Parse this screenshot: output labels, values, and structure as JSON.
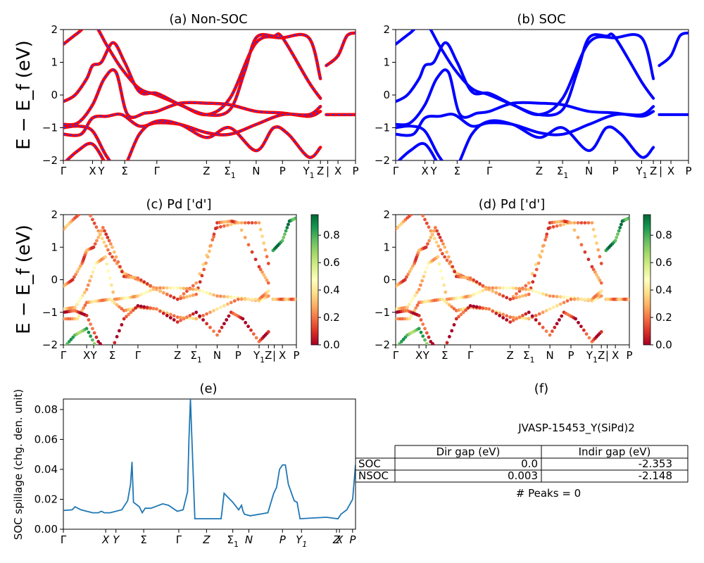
{
  "colors": {
    "nonsoc": "#ff0000",
    "nonsoc_dash": "#1f3bff",
    "soc": "#0000ff",
    "spillage": "#1f77b4"
  },
  "yaxis_label": "E − E_f (eV)",
  "chart_data": [
    {
      "id": "a",
      "type": "line",
      "title": "(a) Non-SOC",
      "ylim": [
        -2,
        2
      ],
      "yticks": [
        "2",
        "1",
        "0",
        "−1",
        "−2"
      ],
      "kticks": [
        {
          "x": 0.0,
          "label": "Γ"
        },
        {
          "x": 0.1,
          "label": "X"
        },
        {
          "x": 0.13,
          "label": "Y"
        },
        {
          "x": 0.21,
          "label": "Σ"
        },
        {
          "x": 0.32,
          "label": "Γ"
        },
        {
          "x": 0.49,
          "label": "Z"
        },
        {
          "x": 0.57,
          "label": "Σ",
          "sub": "1"
        },
        {
          "x": 0.66,
          "label": "N"
        },
        {
          "x": 0.75,
          "label": "P"
        },
        {
          "x": 0.84,
          "label": "Y",
          "sub": "1"
        },
        {
          "x": 0.88,
          "label": "Z"
        },
        {
          "x": 0.905,
          "label": "|"
        },
        {
          "x": 0.94,
          "label": "X"
        },
        {
          "x": 1.0,
          "label": "P"
        }
      ],
      "bands": [
        {
          "x": [
            0.0,
            0.05,
            0.1,
            0.15,
            0.2,
            0.26,
            0.32,
            0.4,
            0.49,
            0.57,
            0.66,
            0.75,
            0.84,
            0.88
          ],
          "y": [
            1.55,
            1.9,
            2.2,
            1.5,
            0.8,
            0.2,
            0.0,
            -0.3,
            -0.6,
            -0.1,
            1.6,
            1.75,
            1.75,
            0.5
          ]
        },
        {
          "x": [
            0.0,
            0.04,
            0.08,
            0.1,
            0.13,
            0.17,
            0.21,
            0.26,
            0.32,
            0.4,
            0.49,
            0.57,
            0.62,
            0.66,
            0.72,
            0.75,
            0.84,
            0.88
          ],
          "y": [
            -0.2,
            0.0,
            0.5,
            0.9,
            1.0,
            1.6,
            1.0,
            0.1,
            0.05,
            -0.3,
            -0.6,
            -0.45,
            0.7,
            1.75,
            1.8,
            1.75,
            0.4,
            -0.1
          ]
        },
        {
          "x": [
            0.0,
            0.05,
            0.1,
            0.14,
            0.18,
            0.22,
            0.28,
            0.32,
            0.4,
            0.49,
            0.57,
            0.66,
            0.75,
            0.84,
            0.88
          ],
          "y": [
            -0.9,
            -0.85,
            -0.3,
            0.5,
            0.7,
            -0.6,
            -0.55,
            -0.5,
            -0.25,
            -0.25,
            -0.3,
            -0.5,
            -0.55,
            -0.65,
            -0.5
          ]
        },
        {
          "x": [
            0.0,
            0.06,
            0.1,
            0.15,
            0.2,
            0.26,
            0.32,
            0.4,
            0.49,
            0.57,
            0.66,
            0.75,
            0.84,
            0.88
          ],
          "y": [
            -1.2,
            -1.2,
            -0.7,
            -0.65,
            -0.6,
            -0.95,
            -0.85,
            -0.9,
            -1.15,
            -1.2,
            -0.9,
            -0.6,
            -0.6,
            -0.35
          ]
        },
        {
          "x": [
            0.0,
            0.05,
            0.1,
            0.15,
            0.2,
            0.26,
            0.32,
            0.4,
            0.49,
            0.57,
            0.66,
            0.72,
            0.77,
            0.84,
            0.88
          ],
          "y": [
            -1.0,
            -0.95,
            -1.1,
            -1.9,
            -2.3,
            -1.2,
            -0.8,
            -0.9,
            -1.3,
            -1.0,
            -1.7,
            -1.0,
            -1.2,
            -1.9,
            -1.6
          ]
        },
        {
          "x": [
            0.0,
            0.05,
            0.1,
            0.15
          ],
          "y": [
            -2.1,
            -1.7,
            -1.5,
            -2.2
          ]
        },
        {
          "x": [
            0.9,
            0.94,
            0.97,
            1.0
          ],
          "y": [
            0.9,
            1.2,
            1.8,
            1.9
          ]
        },
        {
          "x": [
            0.9,
            0.94,
            0.97,
            1.0
          ],
          "y": [
            -0.6,
            -0.6,
            -0.6,
            -0.6
          ]
        }
      ]
    },
    {
      "id": "b",
      "type": "line",
      "title": "(b) SOC",
      "ylim": [
        -2,
        2
      ],
      "yticks": [
        "2",
        "1",
        "0",
        "−1",
        "−2"
      ],
      "kticks": "same-as-a",
      "bands": [
        {
          "x": [
            0.0,
            0.05,
            0.1,
            0.15,
            0.2,
            0.26,
            0.32,
            0.4,
            0.49,
            0.57,
            0.66,
            0.75,
            0.84,
            0.88
          ],
          "y": [
            1.55,
            1.9,
            2.2,
            1.5,
            0.8,
            0.2,
            0.0,
            -0.3,
            -0.6,
            -0.1,
            1.6,
            1.75,
            1.75,
            0.5
          ]
        },
        {
          "x": [
            0.0,
            0.04,
            0.08,
            0.1,
            0.13,
            0.17,
            0.21,
            0.26,
            0.32,
            0.4,
            0.49,
            0.57,
            0.62,
            0.66,
            0.72,
            0.75,
            0.84,
            0.88
          ],
          "y": [
            -0.2,
            0.0,
            0.5,
            0.9,
            1.0,
            1.6,
            1.0,
            0.1,
            0.05,
            -0.3,
            -0.6,
            -0.45,
            0.7,
            1.75,
            1.8,
            1.75,
            0.4,
            -0.1
          ]
        },
        {
          "x": [
            0.0,
            0.05,
            0.1,
            0.14,
            0.18,
            0.22,
            0.28,
            0.32,
            0.4,
            0.49,
            0.57,
            0.66,
            0.75,
            0.84,
            0.88
          ],
          "y": [
            -0.9,
            -0.85,
            -0.3,
            0.5,
            0.7,
            -0.6,
            -0.55,
            -0.5,
            -0.25,
            -0.25,
            -0.3,
            -0.5,
            -0.55,
            -0.65,
            -0.5
          ]
        },
        {
          "x": [
            0.0,
            0.06,
            0.1,
            0.15,
            0.2,
            0.26,
            0.32,
            0.4,
            0.49,
            0.57,
            0.66,
            0.75,
            0.84,
            0.88
          ],
          "y": [
            -1.2,
            -1.2,
            -0.7,
            -0.65,
            -0.6,
            -0.95,
            -0.85,
            -0.9,
            -1.15,
            -1.2,
            -0.9,
            -0.6,
            -0.6,
            -0.35
          ]
        },
        {
          "x": [
            0.0,
            0.05,
            0.1,
            0.15,
            0.2,
            0.26,
            0.32,
            0.4,
            0.49,
            0.57,
            0.66,
            0.72,
            0.77,
            0.84,
            0.88
          ],
          "y": [
            -1.0,
            -0.95,
            -1.1,
            -1.9,
            -2.3,
            -1.2,
            -0.8,
            -0.9,
            -1.3,
            -1.0,
            -1.7,
            -1.0,
            -1.2,
            -1.9,
            -1.6
          ]
        },
        {
          "x": [
            0.0,
            0.05,
            0.1,
            0.15
          ],
          "y": [
            -2.1,
            -1.7,
            -1.5,
            -2.2
          ]
        },
        {
          "x": [
            0.9,
            0.94,
            0.97,
            1.0
          ],
          "y": [
            0.9,
            1.2,
            1.8,
            1.9
          ]
        },
        {
          "x": [
            0.9,
            0.94,
            0.97,
            1.0
          ],
          "y": [
            -0.6,
            -0.6,
            -0.6,
            -0.6
          ]
        }
      ]
    },
    {
      "id": "c",
      "type": "scatter",
      "title": "(c)  Pd ['d']",
      "ylim": [
        -2,
        2
      ],
      "yticks": [
        "2",
        "1",
        "0",
        "−1",
        "−2"
      ],
      "colorbar": {
        "min": 0.0,
        "max": 0.95,
        "ticks": [
          "0.8",
          "0.6",
          "0.4",
          "0.2",
          "0.0"
        ],
        "tick_values": [
          0.8,
          0.6,
          0.4,
          0.2,
          0.0
        ],
        "colormap": "RdYlGn"
      },
      "kticks": [
        {
          "x": 0.0,
          "label": "Γ"
        },
        {
          "x": 0.1,
          "label": "X"
        },
        {
          "x": 0.13,
          "label": "Y"
        },
        {
          "x": 0.21,
          "label": "Σ"
        },
        {
          "x": 0.32,
          "label": "Γ"
        },
        {
          "x": 0.49,
          "label": "Z"
        },
        {
          "x": 0.57,
          "label": "Σ",
          "sub": "1"
        },
        {
          "x": 0.66,
          "label": "N"
        },
        {
          "x": 0.75,
          "label": "P"
        },
        {
          "x": 0.84,
          "label": "Y",
          "sub": "1"
        },
        {
          "x": 0.88,
          "label": "Z"
        },
        {
          "x": 0.905,
          "label": "|"
        },
        {
          "x": 0.94,
          "label": "X"
        },
        {
          "x": 1.0,
          "label": "P"
        }
      ],
      "weights": [
        0.25,
        0.2,
        0.35,
        0.3,
        0.1,
        0.75,
        0.85
      ],
      "weighted_bands": "same-as-a"
    },
    {
      "id": "d",
      "type": "scatter",
      "title": "(d) Pd ['d']",
      "ylim": [
        -2,
        2
      ],
      "yticks": [
        "2",
        "1",
        "0",
        "−1",
        "−2"
      ],
      "colorbar": {
        "min": 0.0,
        "max": 0.95,
        "ticks": [
          "0.8",
          "0.6",
          "0.4",
          "0.2",
          "0.0"
        ],
        "tick_values": [
          0.8,
          0.6,
          0.4,
          0.2,
          0.0
        ],
        "colormap": "RdYlGn"
      },
      "kticks": "same-as-c",
      "weights": [
        0.25,
        0.2,
        0.35,
        0.3,
        0.1,
        0.75,
        0.85
      ],
      "weighted_bands": "same-as-a"
    },
    {
      "id": "e",
      "type": "line",
      "title": "(e)",
      "ylabel": "SOC spillage (chg. den. unit)",
      "ylim": [
        0.0,
        0.087
      ],
      "yticks": [
        "0.08",
        "0.06",
        "0.04",
        "0.02",
        "0.00"
      ],
      "ytick_values": [
        0.08,
        0.06,
        0.04,
        0.02,
        0.0
      ],
      "kticks": [
        {
          "x": 0.0,
          "label": "Γ"
        },
        {
          "x": 0.145,
          "label": "X"
        },
        {
          "x": 0.18,
          "label": "Y"
        },
        {
          "x": 0.275,
          "label": "Σ"
        },
        {
          "x": 0.395,
          "label": "Γ"
        },
        {
          "x": 0.49,
          "label": "Z"
        },
        {
          "x": 0.58,
          "label": "Σ",
          "sub": "1"
        },
        {
          "x": 0.635,
          "label": "N"
        },
        {
          "x": 0.75,
          "label": "P"
        },
        {
          "x": 0.815,
          "label": "Y",
          "sub": "1"
        },
        {
          "x": 0.935,
          "label": "Z"
        },
        {
          "x": 0.945,
          "label": "X"
        },
        {
          "x": 0.99,
          "label": "P"
        }
      ],
      "x": [
        0.0,
        0.03,
        0.04,
        0.06,
        0.1,
        0.12,
        0.13,
        0.14,
        0.16,
        0.2,
        0.22,
        0.23,
        0.235,
        0.24,
        0.26,
        0.27,
        0.28,
        0.3,
        0.34,
        0.36,
        0.39,
        0.41,
        0.425,
        0.43,
        0.435,
        0.44,
        0.45,
        0.54,
        0.55,
        0.58,
        0.6,
        0.61,
        0.615,
        0.62,
        0.64,
        0.7,
        0.72,
        0.73,
        0.74,
        0.75,
        0.76,
        0.77,
        0.79,
        0.8,
        0.81,
        0.85,
        0.9,
        0.94,
        0.95,
        0.97,
        0.99,
        1.0
      ],
      "y": [
        0.0125,
        0.013,
        0.015,
        0.013,
        0.011,
        0.011,
        0.012,
        0.011,
        0.011,
        0.013,
        0.019,
        0.03,
        0.045,
        0.018,
        0.015,
        0.011,
        0.014,
        0.014,
        0.017,
        0.016,
        0.012,
        0.013,
        0.025,
        0.06,
        0.087,
        0.06,
        0.007,
        0.007,
        0.024,
        0.018,
        0.013,
        0.016,
        0.012,
        0.01,
        0.009,
        0.011,
        0.024,
        0.028,
        0.04,
        0.043,
        0.043,
        0.03,
        0.019,
        0.018,
        0.007,
        0.0075,
        0.008,
        0.007,
        0.01,
        0.013,
        0.02,
        0.043
      ]
    }
  ],
  "panel_f": {
    "title": "(f)",
    "material": "JVASP-15453_Y(SiPd)2",
    "headers": [
      "Dir gap (eV)",
      "Indir gap (eV)"
    ],
    "rows": [
      {
        "label": "SOC",
        "dir": "0.0",
        "indir": "-2.353"
      },
      {
        "label": "NSOC",
        "dir": "0.003",
        "indir": "-2.148"
      }
    ],
    "peaks": "# Peaks = 0"
  }
}
